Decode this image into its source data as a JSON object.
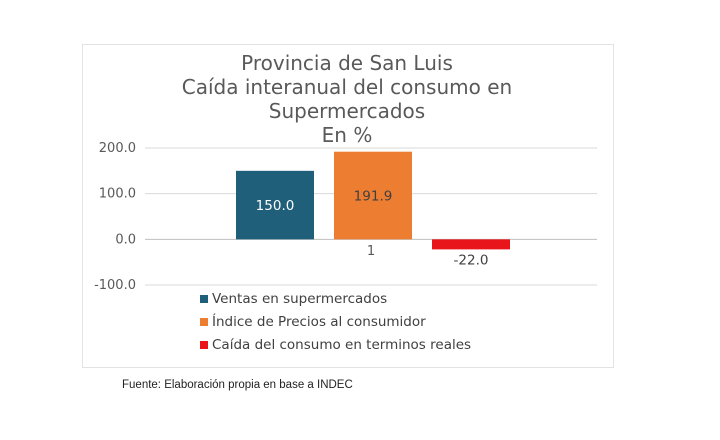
{
  "chart_data": {
    "type": "bar",
    "title_lines": [
      "Provincia de San Luis",
      "Caída interanual del consumo en",
      "Supermercados",
      "En %"
    ],
    "categories": [
      "1"
    ],
    "series": [
      {
        "name": "Ventas en supermercados",
        "values": [
          150.0
        ],
        "label": "150.0",
        "color": "#1f5f7a"
      },
      {
        "name": "Índice de Precios al consumidor",
        "values": [
          191.9
        ],
        "label": "191.9",
        "color": "#ed7d31"
      },
      {
        "name": "Caída del consumo en terminos reales",
        "values": [
          -22.0
        ],
        "label": "-22.0",
        "color": "#e8151b"
      }
    ],
    "y_ticks": [
      "200.0",
      "100.0",
      "0.0",
      "-100.0"
    ],
    "ylim": [
      -100,
      200
    ],
    "grid": true,
    "legend_position": "bottom"
  },
  "source": "Fuente: Elaboración propia en base a INDEC"
}
